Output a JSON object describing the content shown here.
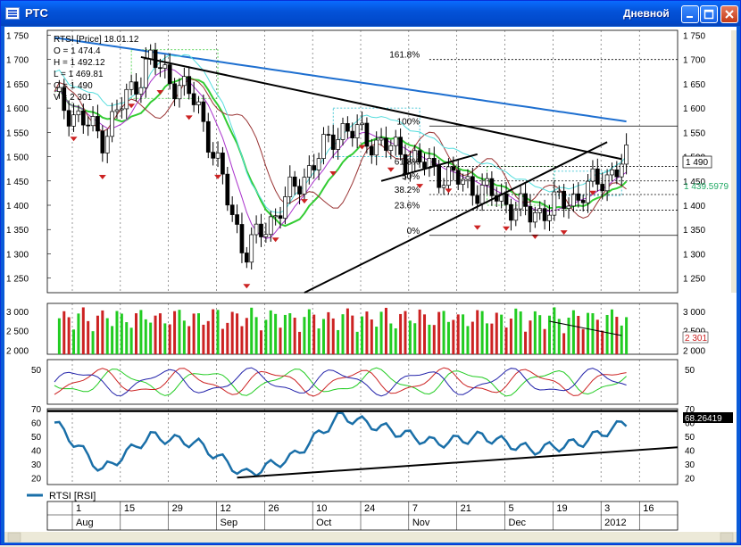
{
  "window": {
    "title": "РТС",
    "right_title": "Дневной"
  },
  "info_box": {
    "name": "RTSI [Price] 18.01.12",
    "lines": [
      "O = 1 474.4",
      "H = 1 492.12",
      "L = 1 469.81",
      "C = 1 490",
      "V = 2 301"
    ]
  },
  "price_axis": {
    "labels": [
      "1 750",
      "1 700",
      "1 650",
      "1 600",
      "1 550",
      "1 500",
      "1 450",
      "1 400",
      "1 350",
      "1 300",
      "1 250"
    ],
    "last_price": "1 490",
    "ma_value": "1 439.5979"
  },
  "fib_levels": [
    "161.8%",
    "100%",
    "61.8%",
    "50%",
    "38.2%",
    "23.6%",
    "0%"
  ],
  "volume_axis": {
    "labels": [
      "3 000",
      "2 500",
      "2 000"
    ],
    "last": "2 301"
  },
  "osc_axis": {
    "labels": [
      "50"
    ]
  },
  "rsi_axis": {
    "labels": [
      "70",
      "60",
      "50",
      "40",
      "30",
      "20"
    ],
    "current": "68.26419"
  },
  "legend": {
    "label": "RTSI [RSI]"
  },
  "date_axis": {
    "days": [
      "1",
      "15",
      "29",
      "12",
      "26",
      "10",
      "24",
      "7",
      "21",
      "5",
      "19",
      "3",
      "16"
    ],
    "months": [
      "Aug",
      "Sep",
      "Oct",
      "Nov",
      "Dec",
      "2012"
    ]
  },
  "colors": {
    "up": "#22CC22",
    "down": "#CC2222",
    "ma_blue": "#1E6FD0",
    "cloud": "#33CC33",
    "rsi": "#1A6FA8"
  },
  "chart_data": {
    "type": "line",
    "title": "RTSI [Price] 18.01.12",
    "ohlcv_last": {
      "open": 1474.4,
      "high": 1492.12,
      "low": 1469.81,
      "close": 1490,
      "volume": 2301
    },
    "series": [
      {
        "name": "RTSI [Price]",
        "x": [
          "Aug 1",
          "Aug 15",
          "Aug 29",
          "Sep 12",
          "Sep 26",
          "Oct 10",
          "Oct 24",
          "Nov 7",
          "Nov 21",
          "Dec 5",
          "Dec 19",
          "Jan 3",
          "Jan 16"
        ],
        "values": [
          1620,
          1540,
          1700,
          1610,
          1300,
          1430,
          1560,
          1520,
          1470,
          1430,
          1380,
          1420,
          1490
        ]
      },
      {
        "name": "RTSI [RSI]",
        "x": [
          "Aug 1",
          "Aug 15",
          "Aug 29",
          "Sep 12",
          "Sep 26",
          "Oct 10",
          "Oct 24",
          "Nov 7",
          "Nov 21",
          "Dec 5",
          "Dec 19",
          "Jan 3",
          "Jan 16"
        ],
        "values": [
          60,
          25,
          50,
          45,
          22,
          35,
          65,
          55,
          45,
          50,
          40,
          45,
          60
        ]
      }
    ],
    "ylim": [
      1220,
      1760
    ],
    "rsi_ylim": [
      15,
      70
    ],
    "rsi_current": 68.26419,
    "fibonacci": {
      "161.8%": 1700,
      "100%": 1563,
      "61.8%": 1480,
      "50%": 1450,
      "38.2%": 1422,
      "23.6%": 1390,
      "0%": 1338
    }
  }
}
